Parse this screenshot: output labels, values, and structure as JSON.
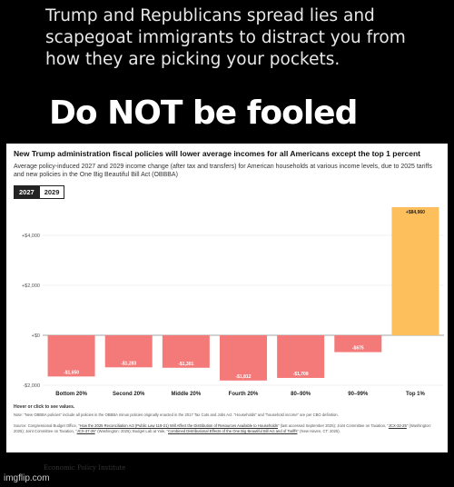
{
  "post": {
    "headline": "Trump and Republicans spread lies and scapegoat immigrants to distract you from how they are picking your pockets.",
    "tagline": "Do NOT be fooled"
  },
  "card": {
    "title": "New Trump administration fiscal policies will lower average incomes for all Americans except the top 1 percent",
    "subtitle": "Average policy-induced 2027 and 2029 income change (after tax and transfers) for American households at various income levels, due to 2025 tariffs and new policies in the One Big Beautiful Bill Act (OBBBA)",
    "tabs": [
      "2027",
      "2029"
    ],
    "hover_hint": "Hover or click to see values.",
    "note": "Note: \"New OBBBA policies\" include all policies in the OBBBA minus policies originally enacted in the 2017 Tax Cuts and Jobs Act. \"Households\" and \"household income\" are per CBO definition.",
    "source_prefix": "Source: Congressional Budget Office, \"",
    "source_link1": "How the 2025 Reconciliation Act (Public Law 119-21) Will Affect the Distribution of Resources Available to Households",
    "source_mid1": "\" (last accessed September 2025); Joint Committee on Taxation, \"",
    "source_link2": "JCX-32-25",
    "source_mid2": "\" (Washington: 2025); Joint Committee on Taxation, \"",
    "source_link3": "JCX-37-25",
    "source_mid3": "\" (Washington: 2025); Budget Lab at Yale, \"",
    "source_link4": "Combined Distributional Effects of the One Big Beautiful Bill Act and of Tariffs",
    "source_end": "\" (New Haven, CT: 2025).",
    "logo": "Economic Policy Institute"
  },
  "watermark": "imgflip.com",
  "colors": {
    "negative": "#f47a7a",
    "positive": "#fdbf5c",
    "grid": "#e4e4e4",
    "zero": "#888888"
  },
  "chart_data": {
    "type": "bar",
    "categories": [
      "Bottom 20%",
      "Second 20%",
      "Middle 20%",
      "Fourth 20%",
      "80–90%",
      "90–99%",
      "Top 1%"
    ],
    "values": [
      -1650,
      -1283,
      -1301,
      -1812,
      -1708,
      -675,
      84960
    ],
    "value_labels": [
      "-$1,650",
      "-$1,283",
      "-$1,301",
      "-$1,812",
      "-$1,708",
      "-$675",
      "+$84,960"
    ],
    "yticks": [
      4000,
      2000,
      0,
      -2000
    ],
    "ytick_labels": [
      "+$4,000",
      "+$2,000",
      "+$0",
      "-$2,000"
    ],
    "ylim": [
      -2000,
      5000
    ],
    "truncated_top_bar": true,
    "grid": true,
    "legend": "none"
  }
}
